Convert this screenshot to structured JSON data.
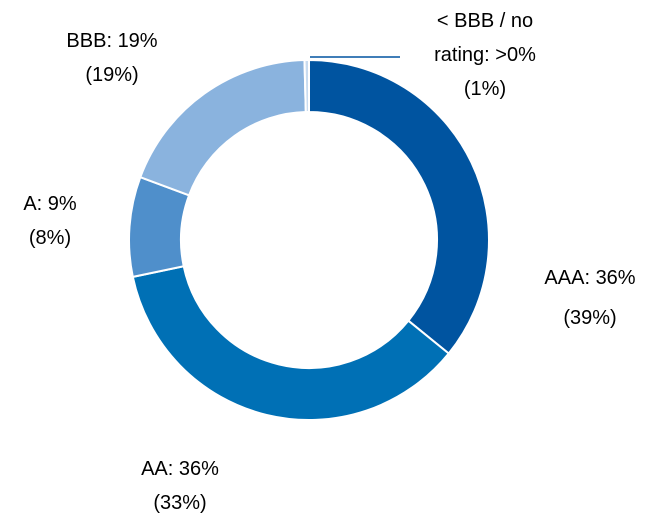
{
  "chart_data": {
    "type": "donut",
    "categories": [
      "AAA",
      "AA",
      "A",
      "BBB",
      "< BBB / no rating"
    ],
    "values": [
      36,
      36,
      9,
      19,
      0.4
    ],
    "value_labels": [
      "36%",
      "36%",
      "9%",
      "19%",
      ">0%"
    ],
    "prior_values": [
      39,
      33,
      8,
      19,
      1
    ],
    "prior_value_labels": [
      "(39%)",
      "(33%)",
      "(8%)",
      "(19%)",
      "(1%)"
    ],
    "colors": [
      "#0054a0",
      "#0070b5",
      "#4f8fcb",
      "#8ab3de",
      "#c9dcf0"
    ]
  }
}
